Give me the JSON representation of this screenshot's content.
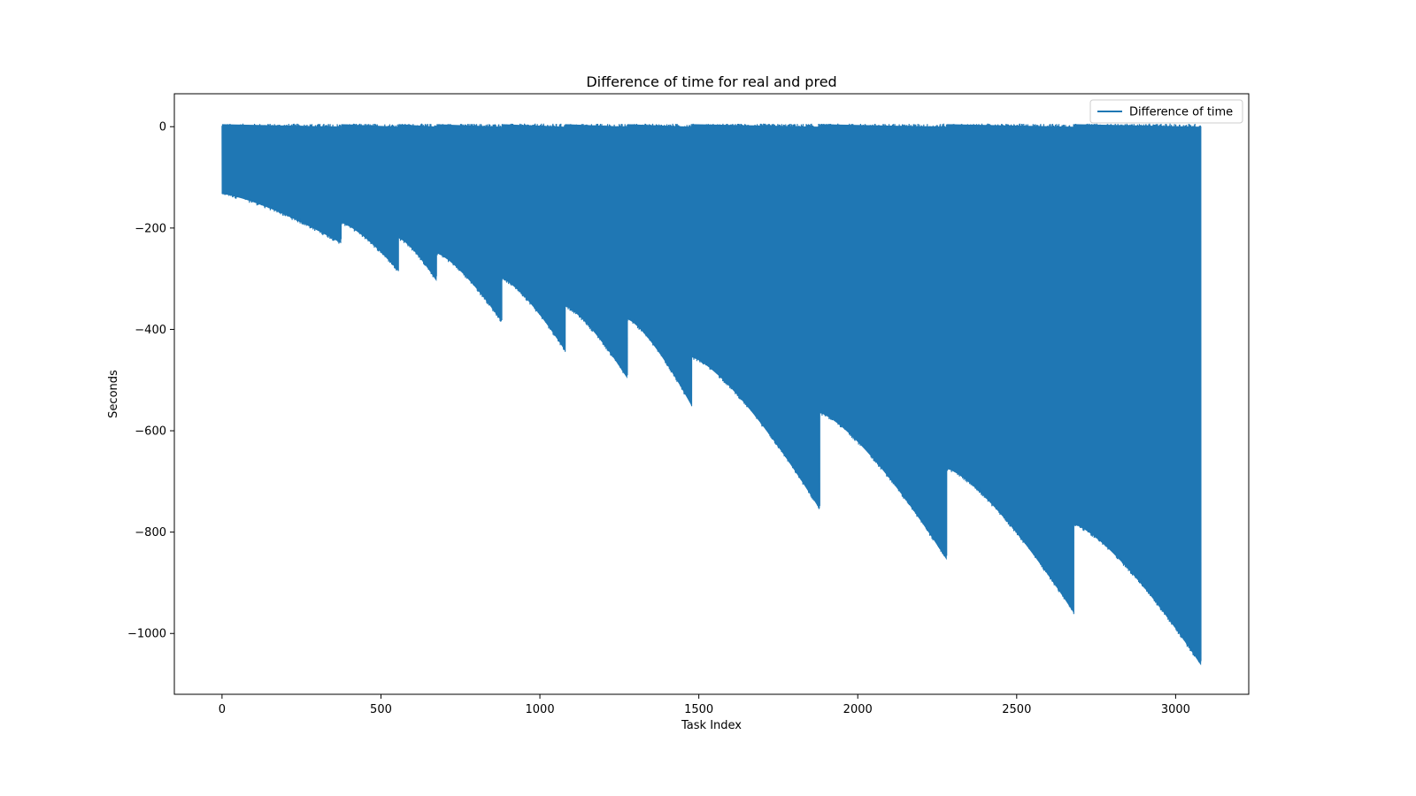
{
  "chart_data": {
    "type": "line",
    "title": "Difference of time for real and pred",
    "xlabel": "Task Index",
    "ylabel": "Seconds",
    "xlim": [
      -150,
      3230
    ],
    "ylim": [
      -1120,
      65
    ],
    "xticks": [
      {
        "value": 0,
        "label": "0"
      },
      {
        "value": 500,
        "label": "500"
      },
      {
        "value": 1000,
        "label": "1000"
      },
      {
        "value": 1500,
        "label": "1500"
      },
      {
        "value": 2000,
        "label": "2000"
      },
      {
        "value": 2500,
        "label": "2500"
      },
      {
        "value": 3000,
        "label": "3000"
      }
    ],
    "yticks": [
      {
        "value": 0,
        "label": "0"
      },
      {
        "value": -200,
        "label": "−200"
      },
      {
        "value": -400,
        "label": "−400"
      },
      {
        "value": -600,
        "label": "−600"
      },
      {
        "value": -800,
        "label": "−800"
      },
      {
        "value": -1000,
        "label": "−1000"
      }
    ],
    "grid": false,
    "legend_position": "top-right",
    "series": [
      {
        "name": "Difference of time",
        "color": "#1f77b4",
        "segments": [
          {
            "start": 0,
            "end": 375,
            "lower_start": -133,
            "lower_end": -230
          },
          {
            "start": 375,
            "end": 555,
            "lower_start": -190,
            "lower_end": -285
          },
          {
            "start": 555,
            "end": 675,
            "lower_start": -220,
            "lower_end": -305
          },
          {
            "start": 675,
            "end": 880,
            "lower_start": -250,
            "lower_end": -385
          },
          {
            "start": 880,
            "end": 1080,
            "lower_start": -300,
            "lower_end": -443
          },
          {
            "start": 1080,
            "end": 1275,
            "lower_start": -355,
            "lower_end": -497
          },
          {
            "start": 1275,
            "end": 1478,
            "lower_start": -380,
            "lower_end": -552
          },
          {
            "start": 1478,
            "end": 1880,
            "lower_start": -455,
            "lower_end": -755
          },
          {
            "start": 1880,
            "end": 2280,
            "lower_start": -565,
            "lower_end": -855
          },
          {
            "start": 2280,
            "end": 2680,
            "lower_start": -675,
            "lower_end": -960
          },
          {
            "start": 2680,
            "end": 3080,
            "lower_start": -785,
            "lower_end": -1063
          }
        ]
      }
    ]
  }
}
